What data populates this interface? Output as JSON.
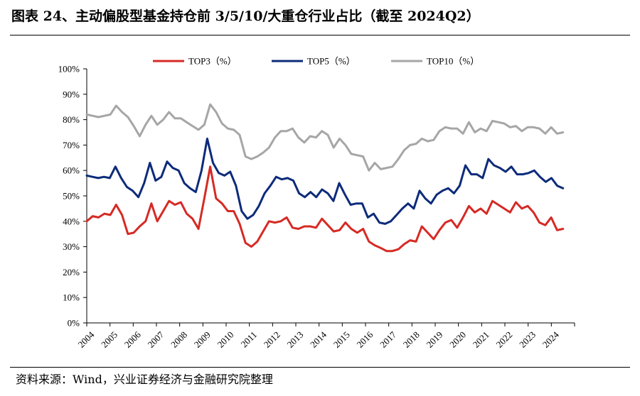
{
  "title": "图表 24、主动偏股型基金持仓前 3/5/10/大重仓行业占比（截至 2024Q2）",
  "source": "资料来源：Wind，兴业证券经济与金融研究院整理",
  "chart_data": {
    "type": "line",
    "ylim": [
      0,
      100
    ],
    "yticks": [
      "0%",
      "10%",
      "20%",
      "30%",
      "40%",
      "50%",
      "60%",
      "70%",
      "80%",
      "90%",
      "100%"
    ],
    "xticks": [
      "2004",
      "2005",
      "2006",
      "2007",
      "2008",
      "2009",
      "2010",
      "2011",
      "2012",
      "2013",
      "2014",
      "2015",
      "2016",
      "2017",
      "2018",
      "2019",
      "2020",
      "2021",
      "2022",
      "2023",
      "2024"
    ],
    "x_start_year": 2004,
    "legend_position": "top",
    "series": [
      {
        "name": "TOP3（%）",
        "color": "#d62a24",
        "values": [
          40,
          42,
          41.5,
          43,
          42.5,
          46.5,
          42.5,
          35,
          35.5,
          38,
          40,
          47,
          40,
          44,
          48,
          46.5,
          47.5,
          43,
          41,
          37,
          49,
          61.5,
          49,
          47,
          44,
          44,
          39,
          31.5,
          30,
          32,
          36,
          40,
          39.5,
          40,
          41.5,
          37.5,
          37,
          38,
          38,
          37.5,
          41,
          38.5,
          36,
          36.5,
          39.5,
          37,
          35.5,
          37,
          32,
          30.5,
          29.5,
          28.3,
          28.3,
          29,
          31,
          32.5,
          32,
          38,
          35.5,
          33,
          36.5,
          39.5,
          40.5,
          37.5,
          41.5,
          46,
          43.5,
          45,
          43,
          48,
          46.5,
          45,
          43.5,
          47.5,
          45,
          46,
          43.5,
          39.5,
          38.5,
          41.5,
          36.5,
          37
        ]
      },
      {
        "name": "TOP5（%）",
        "color": "#0d2b7a",
        "values": [
          58,
          57.5,
          57,
          57.5,
          57,
          61.5,
          57,
          53.5,
          52,
          49.5,
          55,
          63,
          56,
          57.5,
          63.5,
          61,
          60,
          55,
          53,
          51.5,
          60,
          72.5,
          63,
          59,
          58,
          59.5,
          54,
          44,
          41,
          42.5,
          46,
          51,
          54,
          57.5,
          56.5,
          57,
          56,
          51,
          49.5,
          51.5,
          49.5,
          52.5,
          51,
          48,
          55,
          50.5,
          46.5,
          47,
          47,
          41.5,
          43,
          39.5,
          39,
          40,
          42.5,
          45,
          47,
          45,
          52,
          49,
          47,
          50.5,
          52,
          53,
          51,
          54,
          62,
          58.5,
          58.5,
          57,
          64.5,
          62,
          61,
          59.5,
          61.5,
          58.5,
          58.5,
          59,
          60,
          57.5,
          55.5,
          57,
          54,
          53
        ]
      },
      {
        "name": "TOP10（%）",
        "color": "#a6a6a6",
        "values": [
          82,
          81.5,
          81,
          81.5,
          82,
          85.5,
          83,
          81,
          77.5,
          73.5,
          78,
          81.5,
          78,
          80,
          83,
          80.5,
          80.5,
          79,
          77.5,
          76,
          78,
          86,
          83,
          78.5,
          76.5,
          76,
          74,
          65.5,
          64.5,
          65.5,
          67,
          69,
          73,
          75.5,
          75.5,
          76.5,
          73,
          71,
          73.5,
          73,
          75.5,
          74,
          69,
          72.5,
          70,
          66.5,
          66,
          65.5,
          60,
          63,
          60.5,
          61,
          61.5,
          64.5,
          68,
          70,
          70.5,
          72.5,
          71.5,
          72,
          75.5,
          77,
          76.5,
          76.5,
          74.5,
          79,
          75,
          76.5,
          75.5,
          79.5,
          79,
          78.5,
          77,
          77.5,
          75.5,
          77,
          77,
          76.5,
          74.5,
          77,
          74.5,
          75
        ]
      }
    ]
  }
}
